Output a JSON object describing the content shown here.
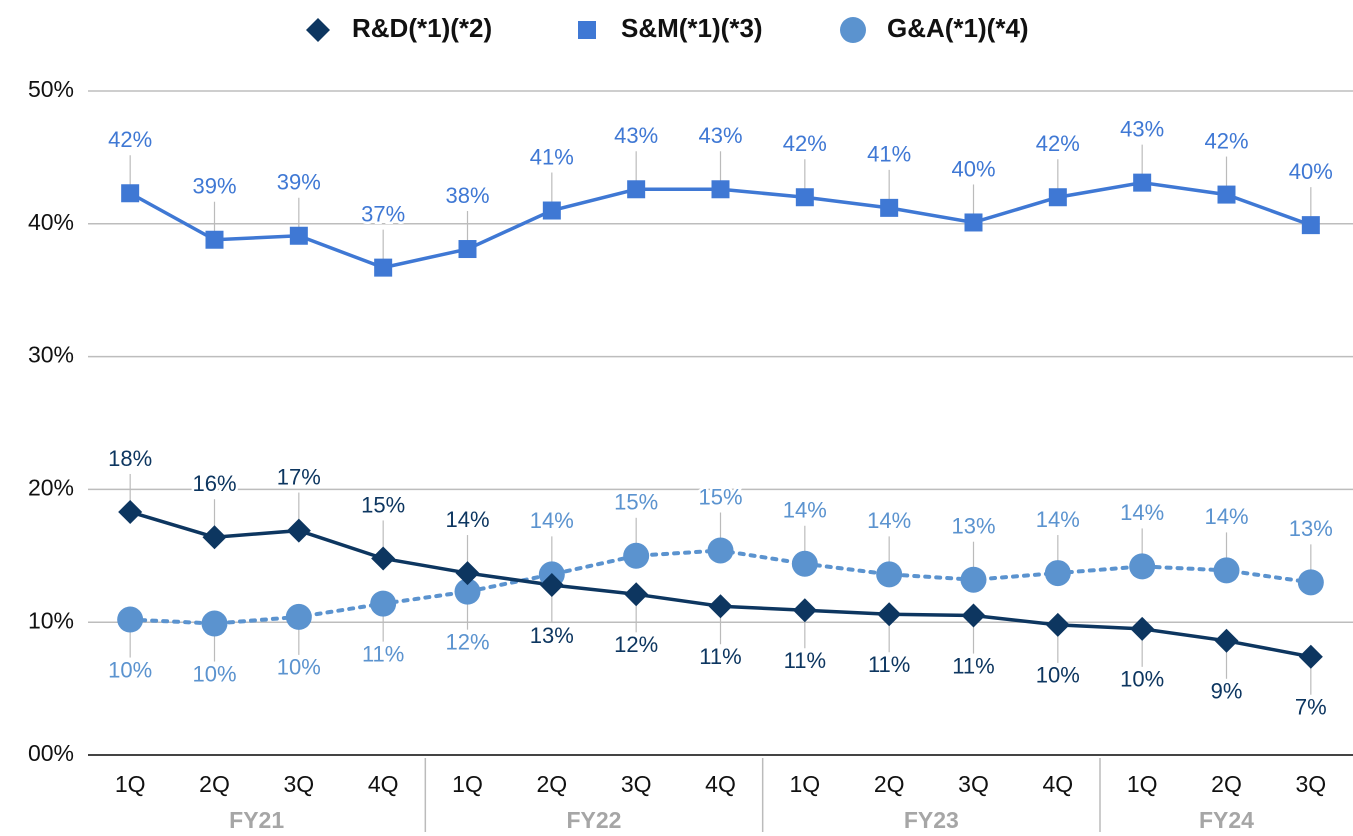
{
  "chart_data": {
    "type": "line",
    "categories": [
      "1Q",
      "2Q",
      "3Q",
      "4Q",
      "1Q",
      "2Q",
      "3Q",
      "4Q",
      "1Q",
      "2Q",
      "3Q",
      "4Q",
      "1Q",
      "2Q",
      "3Q"
    ],
    "category_groups": [
      "FY21",
      "FY21",
      "FY21",
      "FY21",
      "FY22",
      "FY22",
      "FY22",
      "FY22",
      "FY23",
      "FY23",
      "FY23",
      "FY23",
      "FY24",
      "FY24",
      "FY24"
    ],
    "ylim": [
      0,
      50
    ],
    "yticks": [
      {
        "value": 0,
        "label": "00%"
      },
      {
        "value": 10,
        "label": "10%"
      },
      {
        "value": 20,
        "label": "20%"
      },
      {
        "value": 30,
        "label": "30%"
      },
      {
        "value": 40,
        "label": "40%"
      },
      {
        "value": 50,
        "label": "50%"
      }
    ],
    "grid": true,
    "legend": "top",
    "series": [
      {
        "name": "R&D(*1)(*2)",
        "color": "#0d3660",
        "marker": "diamond",
        "line_style": "solid",
        "values": [
          18.3,
          16.4,
          16.9,
          14.8,
          13.7,
          12.8,
          12.1,
          11.2,
          10.9,
          10.6,
          10.5,
          9.8,
          9.5,
          8.6,
          7.4
        ],
        "value_labels": [
          "18%",
          "16%",
          "17%",
          "15%",
          "14%",
          "13%",
          "12%",
          "11%",
          "11%",
          "11%",
          "11%",
          "10%",
          "10%",
          "9%",
          "7%"
        ]
      },
      {
        "name": "S&M(*1)(*3)",
        "color": "#3f78d4",
        "marker": "square",
        "line_style": "solid",
        "values": [
          42.3,
          38.8,
          39.1,
          36.7,
          38.1,
          41.0,
          42.6,
          42.6,
          42.0,
          41.2,
          40.1,
          42.0,
          43.1,
          42.2,
          39.9
        ],
        "value_labels": [
          "42%",
          "39%",
          "39%",
          "37%",
          "38%",
          "41%",
          "43%",
          "43%",
          "42%",
          "41%",
          "40%",
          "42%",
          "43%",
          "42%",
          "40%"
        ]
      },
      {
        "name": "G&A(*1)(*4)",
        "color": "#5b93cf",
        "marker": "circle",
        "line_style": "dotted",
        "values": [
          10.2,
          9.9,
          10.4,
          11.4,
          12.3,
          13.6,
          15.0,
          15.4,
          14.4,
          13.6,
          13.2,
          13.7,
          14.2,
          13.9,
          13.0
        ],
        "value_labels": [
          "10%",
          "10%",
          "10%",
          "11%",
          "12%",
          "14%",
          "15%",
          "15%",
          "14%",
          "14%",
          "13%",
          "14%",
          "14%",
          "14%",
          "13%"
        ]
      }
    ]
  }
}
